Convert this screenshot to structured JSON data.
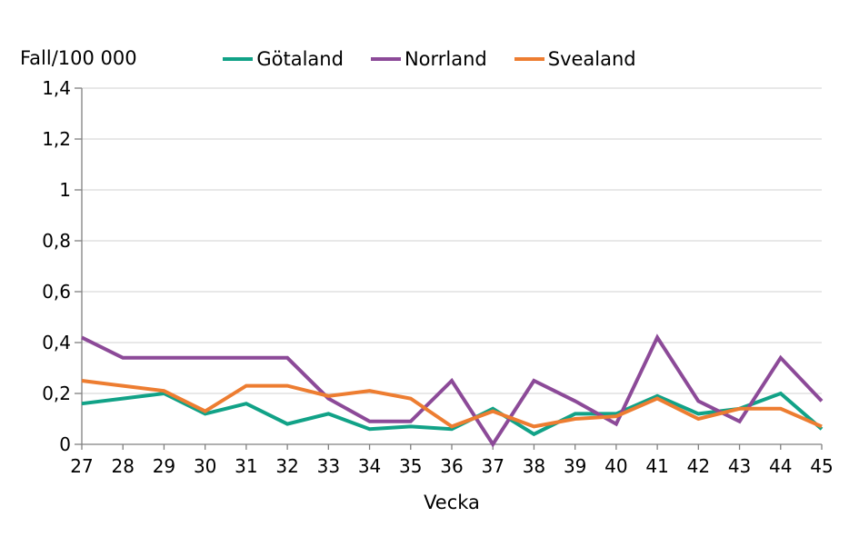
{
  "chart_data": {
    "type": "line",
    "y_axis_title": "Fall/100 000",
    "x_axis_title": "Vecka",
    "x": [
      27,
      28,
      29,
      30,
      31,
      32,
      33,
      34,
      35,
      36,
      37,
      38,
      39,
      40,
      41,
      42,
      43,
      44,
      45
    ],
    "series": [
      {
        "name": "Götaland",
        "color": "#11A287",
        "values": [
          0.16,
          0.18,
          0.2,
          0.12,
          0.16,
          0.08,
          0.12,
          0.06,
          0.07,
          0.06,
          0.14,
          0.04,
          0.12,
          0.12,
          0.19,
          0.12,
          0.14,
          0.2,
          0.06
        ]
      },
      {
        "name": "Norrland",
        "color": "#8C4A98",
        "values": [
          0.42,
          0.34,
          0.34,
          0.34,
          0.34,
          0.34,
          0.18,
          0.09,
          0.09,
          0.25,
          0.0,
          0.25,
          0.17,
          0.08,
          0.42,
          0.17,
          0.09,
          0.34,
          0.17
        ]
      },
      {
        "name": "Svealand",
        "color": "#ED7D31",
        "values": [
          0.25,
          0.23,
          0.21,
          0.13,
          0.23,
          0.23,
          0.19,
          0.21,
          0.18,
          0.07,
          0.13,
          0.07,
          0.1,
          0.11,
          0.18,
          0.1,
          0.14,
          0.14,
          0.07
        ]
      }
    ],
    "ylim": [
      0,
      1.4
    ],
    "ytick_values": [
      0,
      0.2,
      0.4,
      0.6,
      0.8,
      1,
      1.2,
      1.4
    ],
    "ytick_labels": [
      "0",
      "0,2",
      "0,4",
      "0,6",
      "0,8",
      "1",
      "1,2",
      "1,4"
    ],
    "grid": "horizontal",
    "legend_position": "top"
  },
  "colors": {
    "background": "#FFFFFF",
    "gridline": "#D9D9D9",
    "axis": "#808080",
    "text": "#000000"
  }
}
